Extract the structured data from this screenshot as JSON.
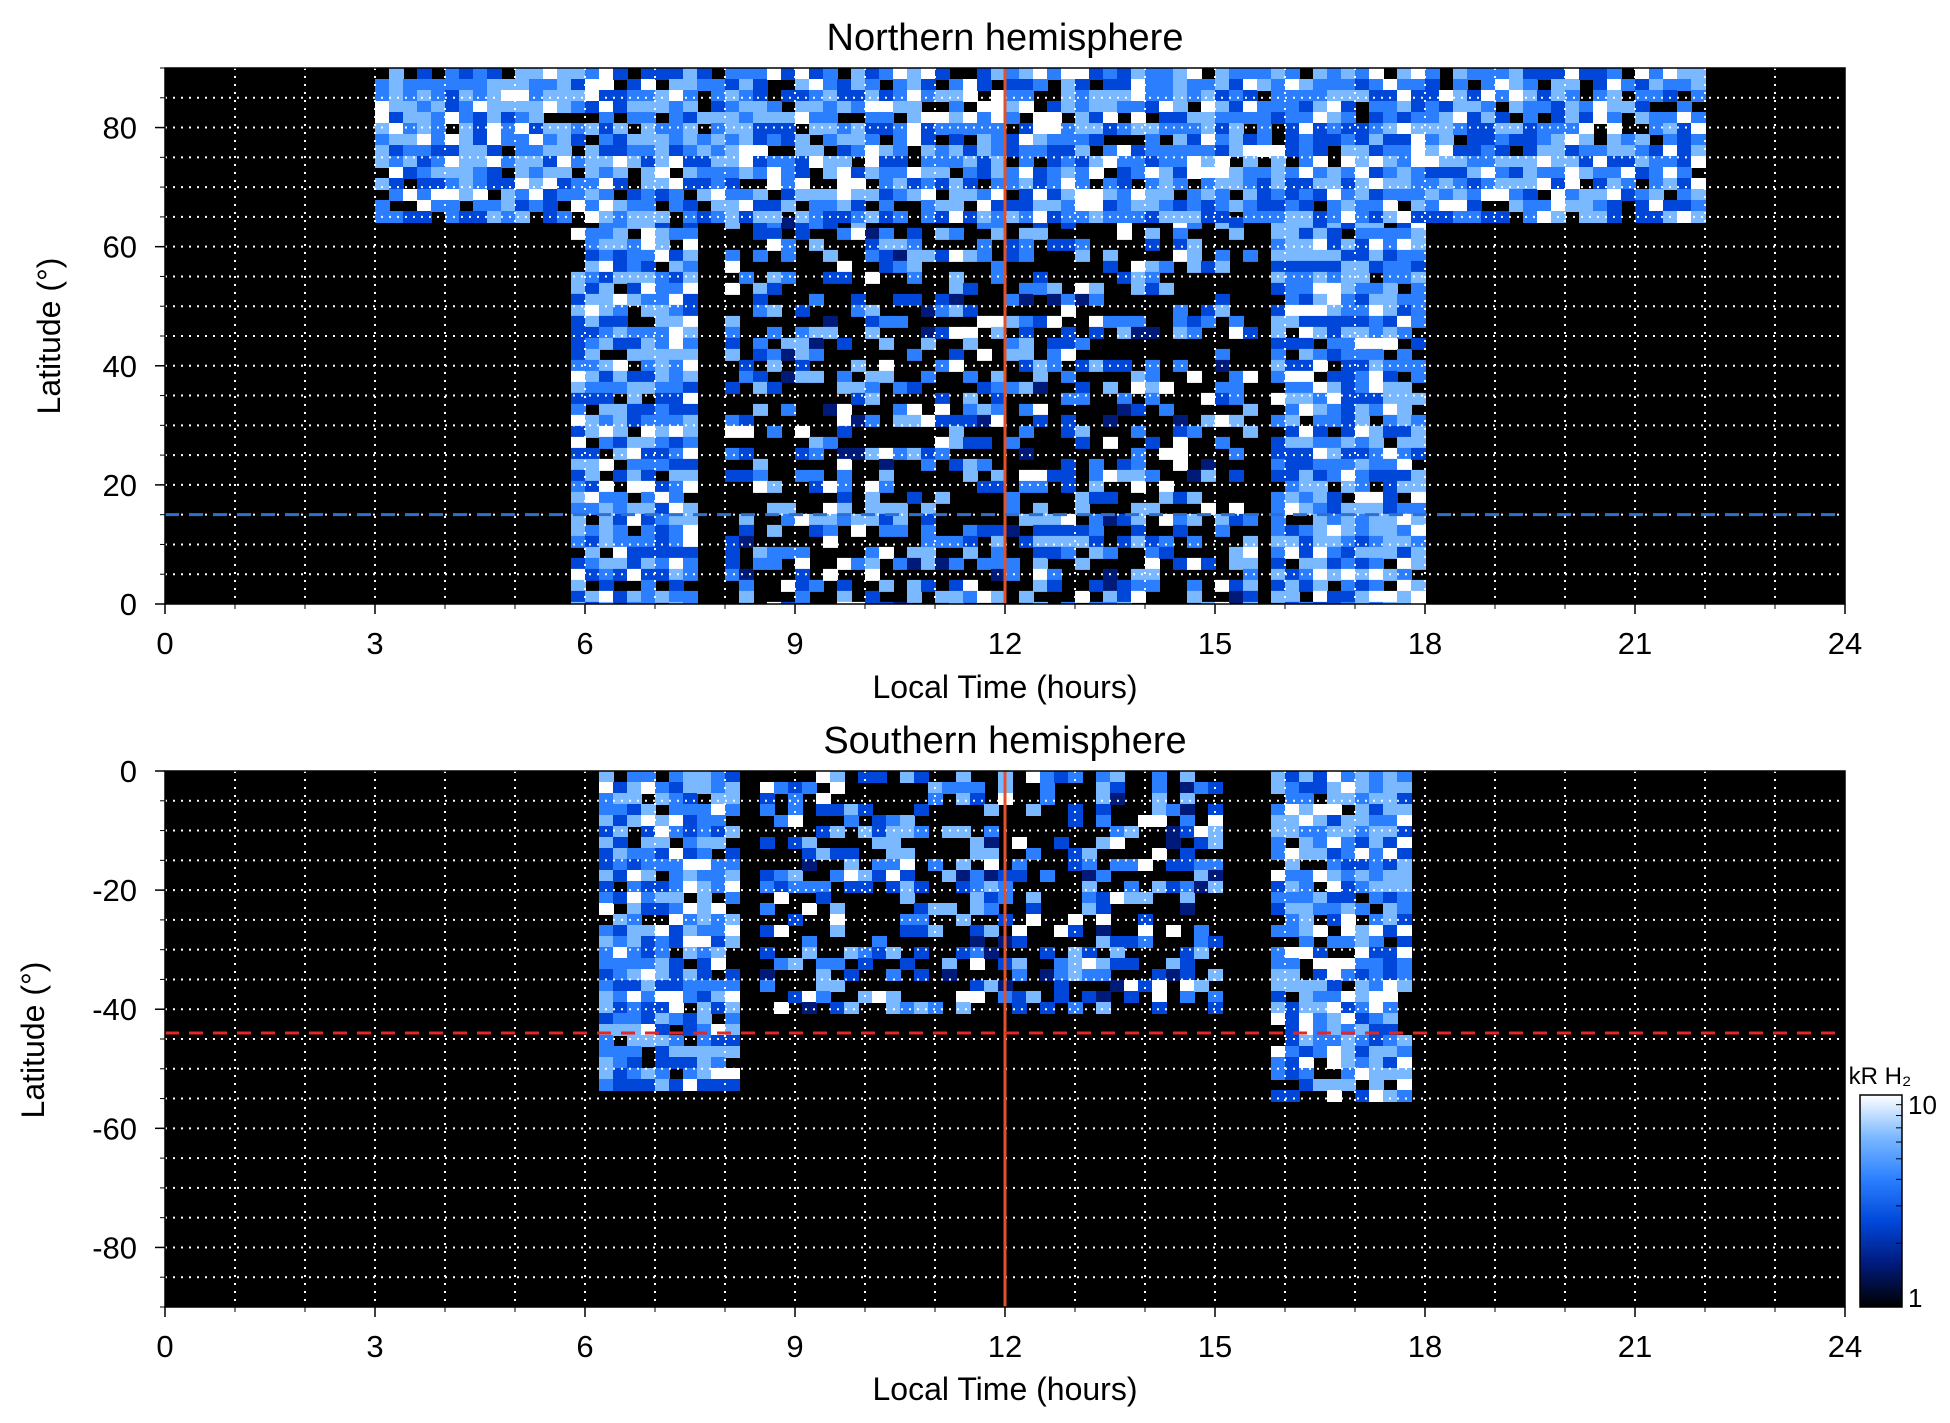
{
  "chart_data": [
    {
      "type": "heatmap",
      "title": "Northern hemisphere",
      "xlabel": "Local Time (hours)",
      "ylabel": "Latitude (°)",
      "xlim": [
        0,
        24
      ],
      "ylim": [
        0,
        90
      ],
      "xticks": [
        0,
        3,
        6,
        9,
        12,
        15,
        18,
        21,
        24
      ],
      "xtick_labels": [
        "0",
        "3",
        "6",
        "9",
        "12",
        "15",
        "18",
        "21",
        "24"
      ],
      "yticks": [
        0,
        20,
        40,
        60,
        80
      ],
      "ytick_labels": [
        "0",
        "20",
        "40",
        "60",
        "80"
      ],
      "grid": true,
      "reference_lines": [
        {
          "orientation": "vertical",
          "x": 12,
          "color": "#e0522a",
          "style": "solid"
        },
        {
          "orientation": "horizontal",
          "y": 15,
          "color": "#2f6fd0",
          "style": "dashed"
        }
      ],
      "emission_bands": [
        {
          "lt_range": [
            5.8,
            7.6
          ],
          "lat_range": [
            0,
            65
          ],
          "intensity": "high"
        },
        {
          "lt_range": [
            8.0,
            15.5
          ],
          "lat_range": [
            0,
            65
          ],
          "intensity": "patchy"
        },
        {
          "lt_range": [
            15.8,
            18.0
          ],
          "lat_range": [
            0,
            65
          ],
          "intensity": "high"
        },
        {
          "lt_range": [
            3.0,
            22.0
          ],
          "lat_range": [
            65,
            90
          ],
          "intensity": "high"
        }
      ]
    },
    {
      "type": "heatmap",
      "title": "Southern hemisphere",
      "xlabel": "Local Time (hours)",
      "ylabel": "Latitude (°)",
      "xlim": [
        0,
        24
      ],
      "ylim": [
        -90,
        0
      ],
      "xticks": [
        0,
        3,
        6,
        9,
        12,
        15,
        18,
        21,
        24
      ],
      "xtick_labels": [
        "0",
        "3",
        "6",
        "9",
        "12",
        "15",
        "18",
        "21",
        "24"
      ],
      "yticks": [
        0,
        -20,
        -40,
        -60,
        -80
      ],
      "ytick_labels": [
        "0",
        "-20",
        "-40",
        "-60",
        "-80"
      ],
      "grid": true,
      "reference_lines": [
        {
          "orientation": "vertical",
          "x": 12,
          "color": "#e0522a",
          "style": "solid"
        },
        {
          "orientation": "horizontal",
          "y": -44,
          "color": "#e02828",
          "style": "dashed"
        }
      ],
      "emission_bands": [
        {
          "lt_range": [
            6.2,
            8.2
          ],
          "lat_range": [
            -52,
            0
          ],
          "intensity": "high"
        },
        {
          "lt_range": [
            8.5,
            15.0
          ],
          "lat_range": [
            -40,
            0
          ],
          "intensity": "patchy"
        },
        {
          "lt_range": [
            15.8,
            17.8
          ],
          "lat_range": [
            -55,
            0
          ],
          "intensity": "high"
        }
      ]
    }
  ],
  "colorbar": {
    "label": "kR H₂",
    "min_label": "1",
    "max_label": "10",
    "scale": "log",
    "colors": [
      "#000000",
      "#001a7a",
      "#0046d8",
      "#2b7fff",
      "#7ab8ff",
      "#ffffff"
    ]
  }
}
